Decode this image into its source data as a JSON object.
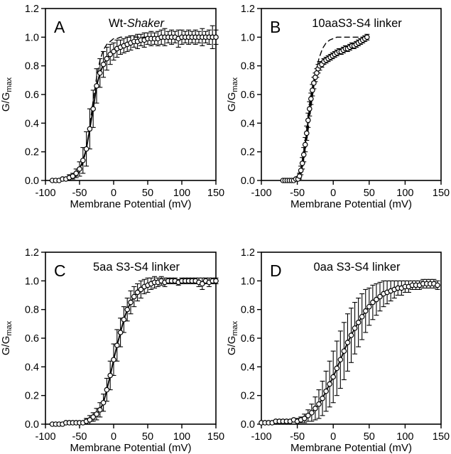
{
  "figure": {
    "description": "Four-panel G-V curves figure",
    "xlabel": "Membrane Potential (mV)",
    "ylabel_main": "G/G",
    "ylabel_sub": "max"
  },
  "chart_data": [
    {
      "type": "scatter",
      "panel_label": "A",
      "title_prefix": "Wt-",
      "title_italic": "Shaker",
      "xlabel": "Membrane Potential (mV)",
      "ylabel_main": "G/G",
      "ylabel_sub": "max",
      "xlim": [
        -100,
        150
      ],
      "ylim": [
        0,
        1.2
      ],
      "xticks": [
        -100,
        -50,
        0,
        50,
        100,
        150
      ],
      "yticks": [
        0,
        0.2,
        0.4,
        0.6,
        0.8,
        1.0,
        1.2
      ],
      "grid": false,
      "legend": "none",
      "series": [
        {
          "name": "boltzmann-fit",
          "style": "dashed",
          "marker": "none",
          "x": [
            -60,
            -55,
            -50,
            -45,
            -40,
            -35,
            -30,
            -25,
            -20,
            -15,
            -10,
            -5,
            0,
            5,
            10,
            15,
            20,
            25,
            30,
            35,
            40,
            45,
            50
          ],
          "y": [
            0.01,
            0.03,
            0.06,
            0.12,
            0.22,
            0.38,
            0.56,
            0.72,
            0.84,
            0.91,
            0.95,
            0.97,
            0.99,
            0.99,
            1.0,
            1.0,
            1.0,
            1.0,
            1.0,
            1.0,
            1.0,
            1.0,
            1.0
          ]
        },
        {
          "name": "mean-data",
          "style": "solid",
          "marker": "open-circle",
          "x": [
            -90,
            -85,
            -80,
            -75,
            -70,
            -65,
            -60,
            -55,
            -50,
            -45,
            -40,
            -35,
            -30,
            -25,
            -20,
            -15,
            -10,
            -5,
            0,
            5,
            10,
            15,
            20,
            25,
            30,
            35,
            40,
            45,
            50,
            55,
            60,
            65,
            70,
            75,
            80,
            85,
            90,
            95,
            100,
            105,
            110,
            115,
            120,
            125,
            130,
            135,
            140,
            145,
            150
          ],
          "y": [
            0.0,
            0.0,
            0.0,
            0.01,
            0.01,
            0.02,
            0.03,
            0.05,
            0.08,
            0.14,
            0.22,
            0.36,
            0.5,
            0.66,
            0.75,
            0.81,
            0.85,
            0.88,
            0.9,
            0.92,
            0.93,
            0.94,
            0.95,
            0.96,
            0.97,
            0.97,
            0.98,
            0.98,
            0.99,
            0.99,
            0.99,
            0.99,
            1.0,
            1.0,
            1.0,
            1.0,
            1.0,
            0.99,
            1.0,
            1.0,
            1.0,
            1.0,
            1.0,
            1.0,
            1.0,
            1.0,
            1.0,
            1.0,
            1.0
          ],
          "yerr": [
            0.01,
            0.01,
            0.01,
            0.01,
            0.01,
            0.02,
            0.02,
            0.03,
            0.05,
            0.09,
            0.12,
            0.14,
            0.13,
            0.12,
            0.1,
            0.09,
            0.08,
            0.07,
            0.06,
            0.06,
            0.05,
            0.05,
            0.05,
            0.05,
            0.04,
            0.05,
            0.04,
            0.05,
            0.04,
            0.05,
            0.04,
            0.05,
            0.05,
            0.06,
            0.04,
            0.05,
            0.04,
            0.06,
            0.05,
            0.04,
            0.05,
            0.04,
            0.05,
            0.04,
            0.06,
            0.04,
            0.05,
            0.08,
            0.05
          ]
        }
      ]
    },
    {
      "type": "scatter",
      "panel_label": "B",
      "title_prefix": "10aaS3-S4 linker",
      "title_italic": "",
      "xlabel": "Membrane Potential (mV)",
      "ylabel_main": "G/G",
      "ylabel_sub": "max",
      "xlim": [
        -100,
        150
      ],
      "ylim": [
        0,
        1.2
      ],
      "xticks": [
        -100,
        -50,
        0,
        50,
        100,
        150
      ],
      "yticks": [
        0,
        0.2,
        0.4,
        0.6,
        0.8,
        1.0,
        1.2
      ],
      "grid": false,
      "legend": "none",
      "series": [
        {
          "name": "boltzmann-fit",
          "style": "dashed",
          "marker": "none",
          "x": [
            -55,
            -50,
            -45,
            -40,
            -35,
            -30,
            -25,
            -20,
            -15,
            -10,
            -5,
            0,
            5,
            10,
            15,
            20,
            25,
            30,
            35,
            40,
            45,
            47
          ],
          "y": [
            0.01,
            0.03,
            0.08,
            0.18,
            0.35,
            0.55,
            0.73,
            0.85,
            0.92,
            0.96,
            0.98,
            0.99,
            1.0,
            1.0,
            1.0,
            1.0,
            1.0,
            1.0,
            1.0,
            1.0,
            1.0,
            1.0
          ]
        },
        {
          "name": "mean-data",
          "style": "solid",
          "marker": "open-circle",
          "x": [
            -70,
            -67,
            -64,
            -61,
            -58,
            -55,
            -52,
            -49,
            -47,
            -45,
            -43,
            -41,
            -39,
            -37,
            -35,
            -33,
            -31,
            -29,
            -27,
            -25,
            -23,
            -21,
            -19,
            -16,
            -13,
            -10,
            -7,
            -4,
            -1,
            2,
            5,
            8,
            11,
            14,
            17,
            20,
            23,
            26,
            29,
            32,
            35,
            38,
            41,
            44,
            47
          ],
          "y": [
            0.0,
            0.0,
            0.0,
            0.0,
            0.0,
            0.0,
            0.01,
            0.01,
            0.03,
            0.07,
            0.12,
            0.18,
            0.25,
            0.33,
            0.42,
            0.5,
            0.57,
            0.63,
            0.68,
            0.72,
            0.75,
            0.78,
            0.8,
            0.81,
            0.83,
            0.84,
            0.85,
            0.86,
            0.87,
            0.88,
            0.89,
            0.9,
            0.9,
            0.91,
            0.92,
            0.92,
            0.93,
            0.94,
            0.94,
            0.95,
            0.96,
            0.97,
            0.98,
            0.99,
            1.0
          ],
          "yerr": [
            0.01,
            0.01,
            0.01,
            0.01,
            0.01,
            0.01,
            0.01,
            0.01,
            0.02,
            0.03,
            0.04,
            0.05,
            0.05,
            0.05,
            0.05,
            0.05,
            0.04,
            0.04,
            0.04,
            0.03,
            0.03,
            0.03,
            0.03,
            0.02,
            0.02,
            0.02,
            0.02,
            0.02,
            0.02,
            0.02,
            0.02,
            0.02,
            0.02,
            0.02,
            0.02,
            0.02,
            0.02,
            0.02,
            0.02,
            0.02,
            0.02,
            0.02,
            0.02,
            0.02,
            0.02
          ]
        }
      ]
    },
    {
      "type": "scatter",
      "panel_label": "C",
      "title_prefix": "5aa S3-S4 linker",
      "title_italic": "",
      "xlabel": "Membrane Potential (mV)",
      "ylabel_main": "G/G",
      "ylabel_sub": "max",
      "xlim": [
        -100,
        150
      ],
      "ylim": [
        0,
        1.2
      ],
      "xticks": [
        -100,
        -50,
        0,
        50,
        100,
        150
      ],
      "yticks": [
        0,
        0.2,
        0.4,
        0.6,
        0.8,
        1.0,
        1.2
      ],
      "grid": false,
      "legend": "none",
      "series": [
        {
          "name": "mean-data",
          "style": "solid",
          "marker": "open-circle",
          "x": [
            -90,
            -85,
            -80,
            -75,
            -70,
            -65,
            -60,
            -55,
            -50,
            -45,
            -40,
            -35,
            -30,
            -25,
            -20,
            -15,
            -10,
            -5,
            0,
            5,
            10,
            15,
            20,
            25,
            30,
            35,
            40,
            45,
            50,
            55,
            60,
            65,
            70,
            75,
            80,
            85,
            90,
            95,
            100,
            105,
            110,
            115,
            120,
            125,
            130,
            135,
            140,
            145,
            150
          ],
          "y": [
            0.0,
            0.0,
            0.0,
            0.0,
            0.01,
            0.01,
            0.01,
            0.01,
            0.01,
            0.01,
            0.02,
            0.03,
            0.05,
            0.07,
            0.1,
            0.15,
            0.24,
            0.34,
            0.45,
            0.55,
            0.64,
            0.73,
            0.8,
            0.85,
            0.89,
            0.92,
            0.94,
            0.96,
            0.97,
            0.98,
            0.99,
            0.99,
            1.0,
            0.99,
            1.0,
            1.0,
            1.0,
            0.99,
            1.0,
            1.0,
            1.0,
            1.0,
            1.0,
            0.99,
            0.98,
            1.0,
            0.99,
            1.0,
            1.0
          ],
          "yerr": [
            0.01,
            0.01,
            0.01,
            0.01,
            0.01,
            0.01,
            0.01,
            0.01,
            0.01,
            0.01,
            0.02,
            0.03,
            0.03,
            0.04,
            0.05,
            0.06,
            0.08,
            0.1,
            0.11,
            0.11,
            0.1,
            0.09,
            0.08,
            0.08,
            0.07,
            0.06,
            0.06,
            0.05,
            0.05,
            0.04,
            0.04,
            0.03,
            0.03,
            0.03,
            0.02,
            0.02,
            0.02,
            0.02,
            0.02,
            0.02,
            0.02,
            0.02,
            0.02,
            0.03,
            0.04,
            0.02,
            0.03,
            0.02,
            0.02
          ]
        }
      ]
    },
    {
      "type": "scatter",
      "panel_label": "D",
      "title_prefix": "0aa S3-S4 linker",
      "title_italic": "",
      "xlabel": "Membrane Potential (mV)",
      "ylabel_main": "G/G",
      "ylabel_sub": "max",
      "xlim": [
        -100,
        150
      ],
      "ylim": [
        0,
        1.2
      ],
      "xticks": [
        -100,
        -50,
        0,
        50,
        100,
        150
      ],
      "yticks": [
        0,
        0.2,
        0.4,
        0.6,
        0.8,
        1.0,
        1.2
      ],
      "grid": false,
      "legend": "none",
      "series": [
        {
          "name": "mean-data",
          "style": "solid",
          "marker": "open-circle",
          "x": [
            -100,
            -95,
            -90,
            -85,
            -80,
            -75,
            -70,
            -65,
            -60,
            -55,
            -50,
            -45,
            -40,
            -35,
            -30,
            -25,
            -20,
            -15,
            -10,
            -5,
            0,
            5,
            10,
            15,
            20,
            25,
            30,
            35,
            40,
            45,
            50,
            55,
            60,
            65,
            70,
            75,
            80,
            85,
            90,
            95,
            100,
            105,
            110,
            115,
            120,
            125,
            130,
            135,
            140,
            145
          ],
          "y": [
            0.01,
            0.01,
            0.01,
            0.01,
            0.02,
            0.02,
            0.02,
            0.02,
            0.02,
            0.03,
            0.02,
            0.03,
            0.04,
            0.06,
            0.08,
            0.11,
            0.14,
            0.18,
            0.23,
            0.28,
            0.33,
            0.39,
            0.45,
            0.51,
            0.57,
            0.62,
            0.67,
            0.71,
            0.75,
            0.79,
            0.82,
            0.85,
            0.87,
            0.89,
            0.91,
            0.92,
            0.93,
            0.94,
            0.95,
            0.95,
            0.96,
            0.96,
            0.97,
            0.97,
            0.97,
            0.98,
            0.98,
            0.98,
            0.98,
            0.97
          ],
          "yerr": [
            0.01,
            0.01,
            0.01,
            0.01,
            0.01,
            0.01,
            0.01,
            0.01,
            0.01,
            0.01,
            0.02,
            0.02,
            0.03,
            0.04,
            0.06,
            0.08,
            0.1,
            0.12,
            0.14,
            0.16,
            0.18,
            0.19,
            0.2,
            0.2,
            0.2,
            0.19,
            0.18,
            0.17,
            0.16,
            0.15,
            0.13,
            0.12,
            0.11,
            0.1,
            0.09,
            0.08,
            0.07,
            0.06,
            0.05,
            0.05,
            0.04,
            0.04,
            0.03,
            0.03,
            0.03,
            0.03,
            0.03,
            0.03,
            0.03,
            0.03
          ]
        }
      ]
    }
  ]
}
